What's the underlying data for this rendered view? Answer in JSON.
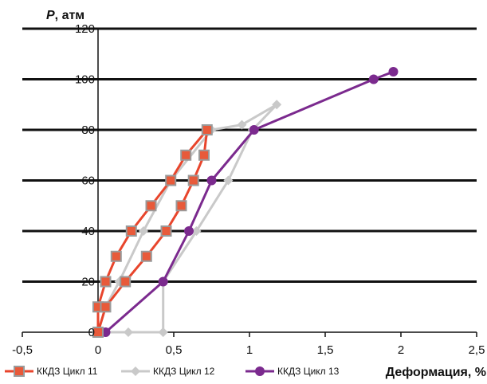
{
  "chart_data": {
    "type": "line",
    "title": "",
    "ylabel": "P, атм",
    "ylabel_var": "P",
    "ylabel_unit": ", атм",
    "xlabel": "Деформация, %",
    "xlim": [
      -0.5,
      2.5
    ],
    "ylim": [
      0,
      120
    ],
    "x_ticks": [
      -0.5,
      0,
      0.5,
      1,
      1.5,
      2,
      2.5
    ],
    "x_tick_labels": [
      "-0,5",
      "0",
      "0,5",
      "1",
      "1,5",
      "2",
      "2,5"
    ],
    "y_ticks": [
      0,
      20,
      40,
      60,
      80,
      100,
      120
    ],
    "y_tick_labels": [
      "0",
      "20",
      "40",
      "60",
      "80",
      "100",
      "120"
    ],
    "grid": "horizontal",
    "legend_position": "bottom",
    "series": [
      {
        "name": "ККДЗ Цикл 11",
        "color": "#e8452c",
        "marker_color": "#c0392b",
        "marker": "square",
        "points": [
          [
            0,
            0
          ],
          [
            0,
            10
          ],
          [
            0.05,
            20
          ],
          [
            0.12,
            30
          ],
          [
            0.22,
            40
          ],
          [
            0.35,
            50
          ],
          [
            0.48,
            60
          ],
          [
            0.58,
            70
          ],
          [
            0.72,
            80
          ],
          [
            0.7,
            70
          ],
          [
            0.63,
            60
          ],
          [
            0.55,
            50
          ],
          [
            0.45,
            40
          ],
          [
            0.32,
            30
          ],
          [
            0.18,
            20
          ],
          [
            0.05,
            10
          ],
          [
            0,
            0
          ]
        ]
      },
      {
        "name": "ККДЗ Цикл 12",
        "color": "#c9c9c9",
        "marker_color": "#c9c9c9",
        "marker": "diamond",
        "points": [
          [
            0.43,
            0
          ],
          [
            0.43,
            20
          ],
          [
            0.65,
            40
          ],
          [
            0.86,
            60
          ],
          [
            1.02,
            80
          ],
          [
            1.18,
            90
          ],
          [
            0.95,
            82
          ],
          [
            0.75,
            80
          ],
          [
            0.48,
            60
          ],
          [
            0.3,
            40
          ],
          [
            0.14,
            20
          ],
          [
            0.05,
            10
          ],
          [
            0,
            0
          ],
          [
            0.2,
            0
          ],
          [
            0.43,
            0
          ]
        ]
      },
      {
        "name": "ККДЗ Цикл 13",
        "color": "#7b2a8e",
        "marker_color": "#7b2a8e",
        "marker": "circle",
        "points": [
          [
            0.05,
            0
          ],
          [
            0.43,
            20
          ],
          [
            0.6,
            40
          ],
          [
            0.75,
            60
          ],
          [
            1.03,
            80
          ],
          [
            1.82,
            100
          ],
          [
            1.95,
            103
          ]
        ]
      }
    ]
  }
}
